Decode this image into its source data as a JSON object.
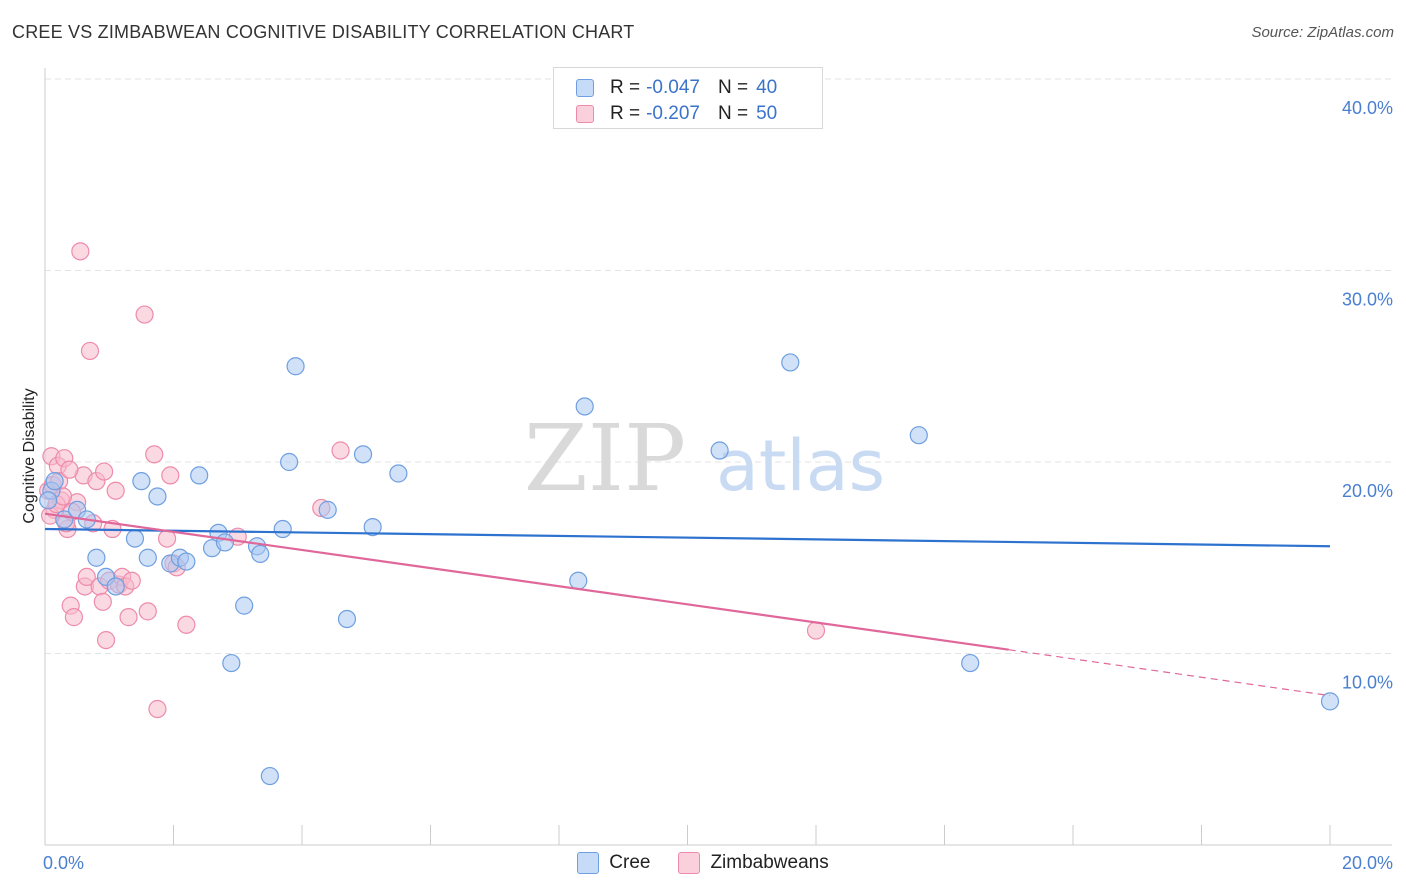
{
  "header": {
    "title": "CREE VS ZIMBABWEAN COGNITIVE DISABILITY CORRELATION CHART",
    "source": "Source: ZipAtlas.com"
  },
  "watermark": {
    "part1": "ZIP",
    "part2": "atlas"
  },
  "legend": {
    "r_label": "R =",
    "n_label": "N =",
    "rows": [
      {
        "name": "Cree",
        "r": "-0.047",
        "n": "40"
      },
      {
        "name": "Zimbabweans",
        "r": "-0.207",
        "n": "50"
      }
    ]
  },
  "colors": {
    "cree_fill": "#a9c8f2",
    "cree_stroke": "#6f9fe0",
    "cree_line": "#2e72cf",
    "zim_fill": "#f7b9cc",
    "zim_stroke": "#ee8bab",
    "zim_line": "#e0679a",
    "grid": "#e3e3e3",
    "tick_text": "#4a7fd0"
  },
  "chart_data": {
    "type": "scatter",
    "title": "CREE VS ZIMBABWEAN COGNITIVE DISABILITY CORRELATION CHART",
    "xlabel": "",
    "ylabel": "Cognitive Disability",
    "xlim": [
      0,
      20
    ],
    "ylim": [
      0,
      40
    ],
    "x_ticks": [
      "0.0%",
      "20.0%"
    ],
    "y_ticks": [
      {
        "value": 10,
        "label": "10.0%"
      },
      {
        "value": 20,
        "label": "20.0%"
      },
      {
        "value": 30,
        "label": "30.0%"
      },
      {
        "value": 40,
        "label": "40.0%"
      }
    ],
    "grid": true,
    "legend_position": "top-center",
    "series": [
      {
        "name": "Cree",
        "r": -0.047,
        "n": 40,
        "trend": {
          "x1": 0,
          "y1": 16.5,
          "x2": 20,
          "y2": 15.6
        },
        "points": [
          [
            0.1,
            18.5
          ],
          [
            0.15,
            19.0
          ],
          [
            0.3,
            17.0
          ],
          [
            0.5,
            17.5
          ],
          [
            0.65,
            17.0
          ],
          [
            0.8,
            15.0
          ],
          [
            0.95,
            14.0
          ],
          [
            1.1,
            13.5
          ],
          [
            1.4,
            16.0
          ],
          [
            1.5,
            19.0
          ],
          [
            1.6,
            15.0
          ],
          [
            1.75,
            18.2
          ],
          [
            1.95,
            14.7
          ],
          [
            2.1,
            15.0
          ],
          [
            2.2,
            14.8
          ],
          [
            2.4,
            19.3
          ],
          [
            2.6,
            15.5
          ],
          [
            2.7,
            16.3
          ],
          [
            2.8,
            15.8
          ],
          [
            2.9,
            9.5
          ],
          [
            3.1,
            12.5
          ],
          [
            3.3,
            15.6
          ],
          [
            3.35,
            15.2
          ],
          [
            3.5,
            3.6
          ],
          [
            3.7,
            16.5
          ],
          [
            3.8,
            20.0
          ],
          [
            3.9,
            25.0
          ],
          [
            4.4,
            17.5
          ],
          [
            4.7,
            11.8
          ],
          [
            4.95,
            20.4
          ],
          [
            5.1,
            16.6
          ],
          [
            5.5,
            19.4
          ],
          [
            8.3,
            13.8
          ],
          [
            8.4,
            22.9
          ],
          [
            10.5,
            20.6
          ],
          [
            11.6,
            25.2
          ],
          [
            13.6,
            21.4
          ],
          [
            14.4,
            9.5
          ],
          [
            20.0,
            7.5
          ],
          [
            0.05,
            18.0
          ]
        ]
      },
      {
        "name": "Zimbabweans",
        "r": -0.207,
        "n": 50,
        "trend": {
          "x1": 0,
          "y1": 17.3,
          "x2": 15.0,
          "y2": 10.2
        },
        "trend_dashed": {
          "x1": 15.0,
          "y1": 10.2,
          "x2": 20.0,
          "y2": 7.8
        },
        "points": [
          [
            0.05,
            18.5
          ],
          [
            0.1,
            20.3
          ],
          [
            0.15,
            17.5
          ],
          [
            0.2,
            19.8
          ],
          [
            0.25,
            18.0
          ],
          [
            0.3,
            20.2
          ],
          [
            0.35,
            16.5
          ],
          [
            0.4,
            12.5
          ],
          [
            0.45,
            11.9
          ],
          [
            0.5,
            17.9
          ],
          [
            0.55,
            31.0
          ],
          [
            0.6,
            19.3
          ],
          [
            0.62,
            13.5
          ],
          [
            0.65,
            14.0
          ],
          [
            0.7,
            25.8
          ],
          [
            0.75,
            16.8
          ],
          [
            0.8,
            19.0
          ],
          [
            0.85,
            13.5
          ],
          [
            0.9,
            12.7
          ],
          [
            0.92,
            19.5
          ],
          [
            0.95,
            10.7
          ],
          [
            1.0,
            13.8
          ],
          [
            1.05,
            16.5
          ],
          [
            1.1,
            18.5
          ],
          [
            1.15,
            13.6
          ],
          [
            1.2,
            14.0
          ],
          [
            1.25,
            13.5
          ],
          [
            1.3,
            11.9
          ],
          [
            1.35,
            13.8
          ],
          [
            1.55,
            27.7
          ],
          [
            1.6,
            12.2
          ],
          [
            1.7,
            20.4
          ],
          [
            1.75,
            7.1
          ],
          [
            1.9,
            16.0
          ],
          [
            1.95,
            19.3
          ],
          [
            2.0,
            14.7
          ],
          [
            2.05,
            14.5
          ],
          [
            2.2,
            11.5
          ],
          [
            3.0,
            16.1
          ],
          [
            4.3,
            17.6
          ],
          [
            4.6,
            20.6
          ],
          [
            12.0,
            11.2
          ],
          [
            0.08,
            17.2
          ],
          [
            0.12,
            18.8
          ],
          [
            0.18,
            17.8
          ],
          [
            0.22,
            19.0
          ],
          [
            0.28,
            18.2
          ],
          [
            0.33,
            16.8
          ],
          [
            0.38,
            19.6
          ],
          [
            0.42,
            17.4
          ]
        ]
      }
    ]
  }
}
